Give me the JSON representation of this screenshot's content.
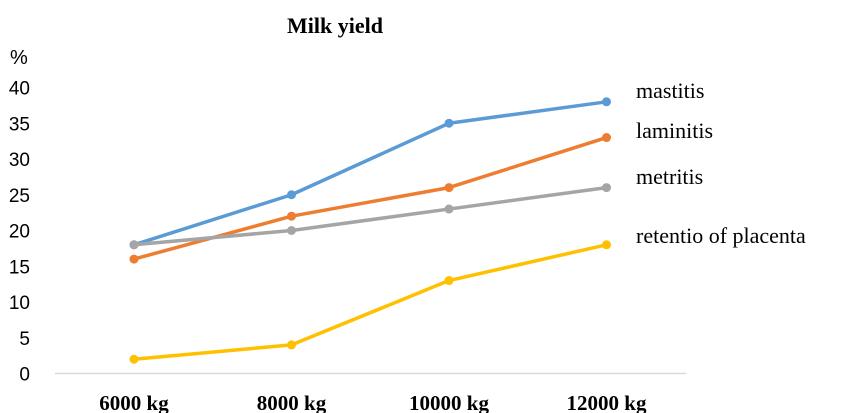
{
  "chart_data": {
    "type": "line",
    "title": "Milk yield",
    "ylabel": "%",
    "xlabel": "",
    "categories": [
      "6000 kg",
      "8000 kg",
      "10000 kg",
      "12000 kg"
    ],
    "ylim": [
      0,
      40
    ],
    "yticks": [
      0,
      5,
      10,
      15,
      20,
      25,
      30,
      35,
      40
    ],
    "grid": false,
    "legend_placement": "right",
    "series": [
      {
        "name": "mastitis",
        "color": "#5b9bd5",
        "values": [
          18,
          25,
          35,
          38
        ]
      },
      {
        "name": "laminitis",
        "color": "#ed7d31",
        "values": [
          16,
          22,
          26,
          33
        ]
      },
      {
        "name": "metritis",
        "color": "#a5a5a5",
        "values": [
          18,
          20,
          23,
          26
        ]
      },
      {
        "name": "retentio of placenta",
        "color": "#ffc000",
        "values": [
          2,
          4,
          13,
          18
        ]
      }
    ]
  }
}
